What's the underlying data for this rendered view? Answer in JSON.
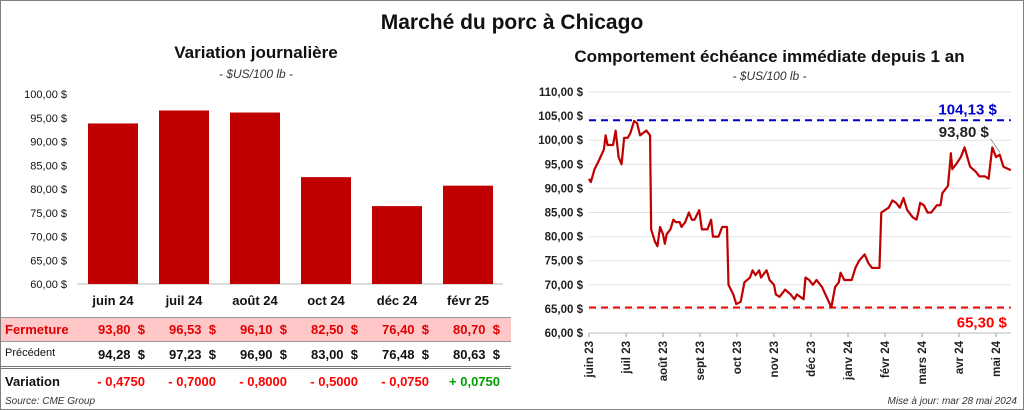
{
  "title": "Marché du porc à Chicago",
  "left": {
    "title": "Variation journalière",
    "unit": "- $US/100 lb -",
    "table": {
      "rows": [
        {
          "label": "Fermeture",
          "values": [
            "93,80  $",
            "96,53  $",
            "96,10  $",
            "82,50  $",
            "76,40  $",
            "80,70  $"
          ]
        },
        {
          "label": "Précédent",
          "values": [
            "94,28  $",
            "97,23  $",
            "96,90  $",
            "83,00  $",
            "76,48  $",
            "80,63  $"
          ]
        },
        {
          "label": "Variation",
          "values": [
            "- 0,4750",
            "- 0,7000",
            "- 0,8000",
            "- 0,5000",
            "- 0,0750",
            "+ 0,0750"
          ]
        }
      ]
    },
    "source": "Source: CME Group"
  },
  "right": {
    "title": "Comportement  échéance immédiate depuis 1 an",
    "unit": "- $US/100 lb -",
    "max_label": "104,13 $",
    "min_label": "65,30 $",
    "last_label": "93,80 $",
    "updated": "Mise à jour: mar 28 mai 2024"
  },
  "colors": {
    "bar": "#c00000",
    "line": "#c00000",
    "max": "#0000cc",
    "min": "#ff0000",
    "pos": "#00a000",
    "neg": "#ff0000",
    "highlight": "#ffc7c7"
  },
  "chart_data": [
    {
      "type": "bar",
      "title": "Variation journalière",
      "ylabel": "$US/100 lb",
      "categories": [
        "juin 24",
        "juil 24",
        "août 24",
        "oct 24",
        "déc 24",
        "févr 25"
      ],
      "values": [
        93.8,
        96.53,
        96.1,
        82.5,
        76.4,
        80.7
      ],
      "ylim": [
        60,
        100
      ],
      "yticks": [
        "60,00 $",
        "65,00 $",
        "70,00 $",
        "75,00 $",
        "80,00 $",
        "85,00 $",
        "90,00 $",
        "95,00 $",
        "100,00 $"
      ]
    },
    {
      "type": "line",
      "title": "Comportement  échéance immédiate depuis 1 an",
      "ylim": [
        60,
        110
      ],
      "yticks": [
        "60,00 $",
        "65,00 $",
        "70,00 $",
        "75,00 $",
        "80,00 $",
        "85,00 $",
        "90,00 $",
        "95,00 $",
        "100,00 $",
        "105,00 $",
        "110,00 $"
      ],
      "xticks": [
        "juin 23",
        "juil 23",
        "août 23",
        "sept 23",
        "oct 23",
        "nov 23",
        "déc 23",
        "janv 24",
        "févr 24",
        "mars 24",
        "avr 24",
        "mai 24"
      ],
      "max": 104.13,
      "min": 65.3,
      "last": 93.8,
      "points": [
        [
          0,
          92
        ],
        [
          0.05,
          91.3
        ],
        [
          0.15,
          94
        ],
        [
          0.25,
          95.5
        ],
        [
          0.4,
          98
        ],
        [
          0.45,
          101
        ],
        [
          0.5,
          99
        ],
        [
          0.65,
          99
        ],
        [
          0.72,
          102
        ],
        [
          0.8,
          96.5
        ],
        [
          0.88,
          95
        ],
        [
          0.95,
          100.5
        ],
        [
          1.05,
          100.5
        ],
        [
          1.12,
          101.5
        ],
        [
          1.22,
          104
        ],
        [
          1.3,
          103.5
        ],
        [
          1.38,
          101
        ],
        [
          1.55,
          102
        ],
        [
          1.65,
          101
        ],
        [
          1.68,
          81.5
        ],
        [
          1.78,
          79
        ],
        [
          1.85,
          78
        ],
        [
          1.92,
          82
        ],
        [
          2.0,
          80.5
        ],
        [
          2.05,
          78.5
        ],
        [
          2.1,
          80.5
        ],
        [
          2.2,
          81.5
        ],
        [
          2.28,
          83.5
        ],
        [
          2.35,
          83
        ],
        [
          2.45,
          83
        ],
        [
          2.5,
          82
        ],
        [
          2.6,
          83
        ],
        [
          2.7,
          85
        ],
        [
          2.78,
          83.5
        ],
        [
          2.85,
          83.5
        ],
        [
          2.98,
          85.5
        ],
        [
          3.05,
          81.5
        ],
        [
          3.2,
          81.5
        ],
        [
          3.3,
          83.5
        ],
        [
          3.35,
          80
        ],
        [
          3.5,
          80
        ],
        [
          3.6,
          82
        ],
        [
          3.73,
          82
        ],
        [
          3.77,
          70
        ],
        [
          3.9,
          68
        ],
        [
          3.98,
          66
        ],
        [
          4.1,
          66.5
        ],
        [
          4.2,
          70.5
        ],
        [
          4.35,
          71.5
        ],
        [
          4.42,
          73
        ],
        [
          4.5,
          72
        ],
        [
          4.6,
          73
        ],
        [
          4.65,
          71.5
        ],
        [
          4.8,
          73
        ],
        [
          4.88,
          71
        ],
        [
          5.0,
          70
        ],
        [
          5.05,
          68
        ],
        [
          5.15,
          67.5
        ],
        [
          5.3,
          69
        ],
        [
          5.45,
          68
        ],
        [
          5.55,
          67
        ],
        [
          5.62,
          68
        ],
        [
          5.8,
          67
        ],
        [
          5.85,
          71.5
        ],
        [
          5.95,
          71
        ],
        [
          6.05,
          70
        ],
        [
          6.15,
          71
        ],
        [
          6.3,
          69.5
        ],
        [
          6.45,
          67
        ],
        [
          6.55,
          65.3
        ],
        [
          6.65,
          69.5
        ],
        [
          6.75,
          70.5
        ],
        [
          6.8,
          72.5
        ],
        [
          6.9,
          71
        ],
        [
          7.0,
          71
        ],
        [
          7.1,
          71
        ],
        [
          7.2,
          73.5
        ],
        [
          7.3,
          75
        ],
        [
          7.45,
          76.3
        ],
        [
          7.55,
          74.5
        ],
        [
          7.65,
          73.5
        ],
        [
          7.85,
          73.5
        ],
        [
          7.9,
          85
        ],
        [
          8.0,
          85.5
        ],
        [
          8.1,
          86
        ],
        [
          8.2,
          87.5
        ],
        [
          8.3,
          87
        ],
        [
          8.4,
          86
        ],
        [
          8.5,
          88
        ],
        [
          8.6,
          85.5
        ],
        [
          8.75,
          84
        ],
        [
          8.85,
          83.5
        ],
        [
          8.9,
          85
        ],
        [
          8.95,
          87
        ],
        [
          9.05,
          86.5
        ],
        [
          9.15,
          85
        ],
        [
          9.25,
          85
        ],
        [
          9.4,
          86.5
        ],
        [
          9.5,
          86.5
        ],
        [
          9.55,
          89
        ],
        [
          9.7,
          90.5
        ],
        [
          9.75,
          94.5
        ],
        [
          9.78,
          97.3
        ],
        [
          9.82,
          94
        ],
        [
          9.92,
          95
        ],
        [
          10.05,
          96.5
        ],
        [
          10.15,
          98.5
        ],
        [
          10.3,
          94.5
        ],
        [
          10.45,
          93.5
        ],
        [
          10.55,
          92.5
        ],
        [
          10.7,
          92.5
        ],
        [
          10.8,
          92
        ],
        [
          10.9,
          98.5
        ],
        [
          11.0,
          96.5
        ],
        [
          11.1,
          97
        ],
        [
          11.2,
          94.5
        ],
        [
          11.4,
          93.8
        ]
      ]
    }
  ]
}
